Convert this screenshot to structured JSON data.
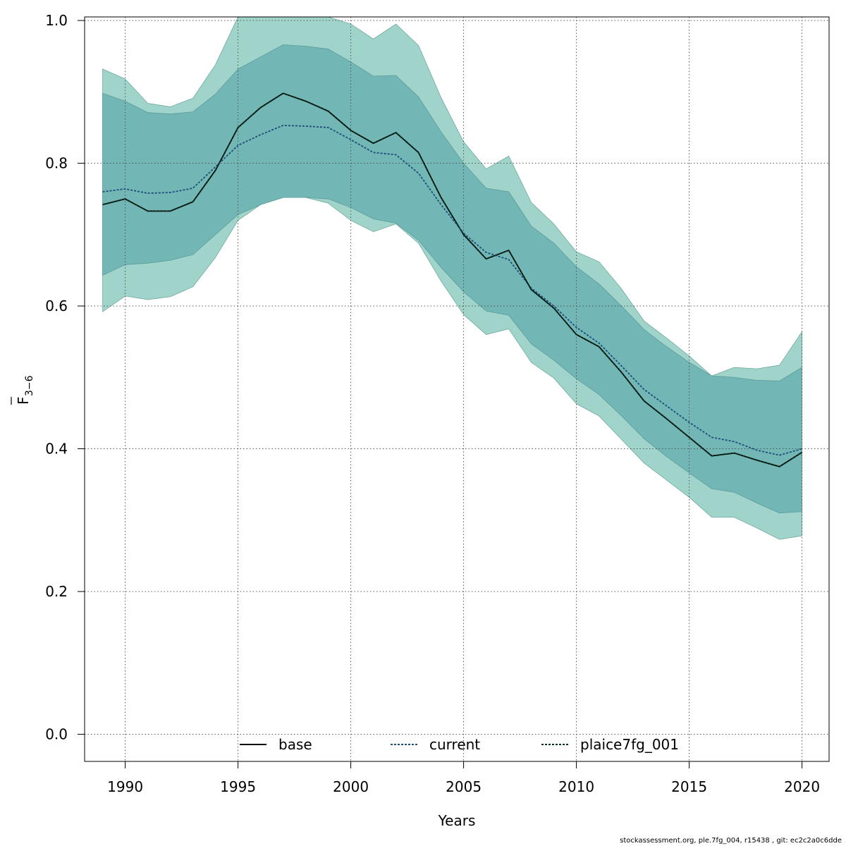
{
  "chart_data": {
    "type": "line",
    "xlabel": "Years",
    "ylabel": {
      "main": "F",
      "sub": "3−6"
    },
    "xlim": [
      1988.2,
      2021.2
    ],
    "ylim": [
      -0.038,
      1.005
    ],
    "x_ticks": [
      1990,
      1995,
      2000,
      2005,
      2010,
      2015,
      2020
    ],
    "y_ticks": [
      0.0,
      0.2,
      0.4,
      0.6,
      0.8,
      1.0
    ],
    "y_tick_labels": [
      "0.0",
      "0.2",
      "0.4",
      "0.6",
      "0.8",
      "1.0"
    ],
    "grid": true,
    "legend_position": "bottom",
    "years": [
      1989,
      1990,
      1991,
      1992,
      1993,
      1994,
      1995,
      1996,
      1997,
      1998,
      1999,
      2000,
      2001,
      2002,
      2003,
      2004,
      2005,
      2006,
      2007,
      2008,
      2009,
      2010,
      2011,
      2012,
      2013,
      2014,
      2015,
      2016,
      2017,
      2018,
      2019,
      2020
    ],
    "series": [
      {
        "name": "base",
        "color": "#000000",
        "linestyle": "solid",
        "values": [
          0.742,
          0.75,
          0.733,
          0.733,
          0.746,
          0.79,
          0.85,
          0.878,
          0.898,
          0.887,
          0.873,
          0.846,
          0.828,
          0.843,
          0.815,
          0.752,
          0.7,
          0.666,
          0.678,
          0.623,
          0.597,
          0.56,
          0.543,
          0.507,
          0.467,
          0.442,
          0.416,
          0.39,
          0.394,
          0.384,
          0.375,
          0.395
        ],
        "ci_inner": {
          "low": [
            0.643,
            0.658,
            0.66,
            0.664,
            0.672,
            0.7,
            0.728,
            0.742,
            0.752,
            0.752,
            0.75,
            0.738,
            0.722,
            0.716,
            0.692,
            0.654,
            0.62,
            0.593,
            0.587,
            0.547,
            0.524,
            0.498,
            0.476,
            0.446,
            0.414,
            0.389,
            0.366,
            0.344,
            0.339,
            0.324,
            0.31,
            0.312
          ],
          "high": [
            0.898,
            0.887,
            0.871,
            0.869,
            0.872,
            0.897,
            0.932,
            0.949,
            0.966,
            0.964,
            0.96,
            0.942,
            0.922,
            0.923,
            0.893,
            0.844,
            0.8,
            0.765,
            0.76,
            0.712,
            0.688,
            0.655,
            0.631,
            0.6,
            0.567,
            0.543,
            0.521,
            0.502,
            0.5,
            0.496,
            0.495,
            0.514
          ]
        },
        "ci_outer": {
          "low": [
            0.592,
            0.614,
            0.609,
            0.613,
            0.627,
            0.668,
            0.72,
            0.742,
            0.752,
            0.752,
            0.744,
            0.72,
            0.704,
            0.715,
            0.688,
            0.635,
            0.588,
            0.56,
            0.568,
            0.521,
            0.499,
            0.463,
            0.446,
            0.413,
            0.38,
            0.356,
            0.332,
            0.304,
            0.304,
            0.289,
            0.273,
            0.278
          ],
          "high": [
            0.932,
            0.918,
            0.884,
            0.879,
            0.891,
            0.938,
            1.005,
            1.005,
            1.005,
            1.005,
            1.005,
            0.995,
            0.974,
            0.995,
            0.965,
            0.892,
            0.83,
            0.792,
            0.81,
            0.745,
            0.715,
            0.676,
            0.662,
            0.624,
            0.579,
            0.555,
            0.53,
            0.502,
            0.514,
            0.512,
            0.517,
            0.564
          ]
        }
      },
      {
        "name": "current",
        "color": "#1f4e79",
        "linestyle": "dotted",
        "values": [
          0.76,
          0.764,
          0.758,
          0.759,
          0.765,
          0.795,
          0.825,
          0.84,
          0.853,
          0.852,
          0.85,
          0.833,
          0.815,
          0.812,
          0.786,
          0.742,
          0.702,
          0.675,
          0.665,
          0.625,
          0.6,
          0.57,
          0.548,
          0.516,
          0.483,
          0.46,
          0.437,
          0.416,
          0.41,
          0.398,
          0.391,
          0.4
        ]
      },
      {
        "name": "plaice7fg_001",
        "color": "#06301e",
        "linestyle": "dotted",
        "values": [
          0.742,
          0.75,
          0.733,
          0.733,
          0.746,
          0.79,
          0.85,
          0.878,
          0.898,
          0.887,
          0.873,
          0.846,
          0.828,
          0.843,
          0.815,
          0.752,
          0.7,
          0.666,
          0.678,
          0.623,
          0.597,
          0.56,
          0.543,
          0.507,
          0.467,
          0.442,
          0.416,
          0.39,
          0.394,
          0.384,
          0.375,
          0.395
        ]
      }
    ],
    "band_colors": {
      "outer": "#a0d4cb",
      "inner": "#73b6b6",
      "blue_tint": "#9bbfcb"
    }
  },
  "footer": "stockassessment.org, ple.7fg_004, r15438 , git: ec2c2a0c6dde"
}
